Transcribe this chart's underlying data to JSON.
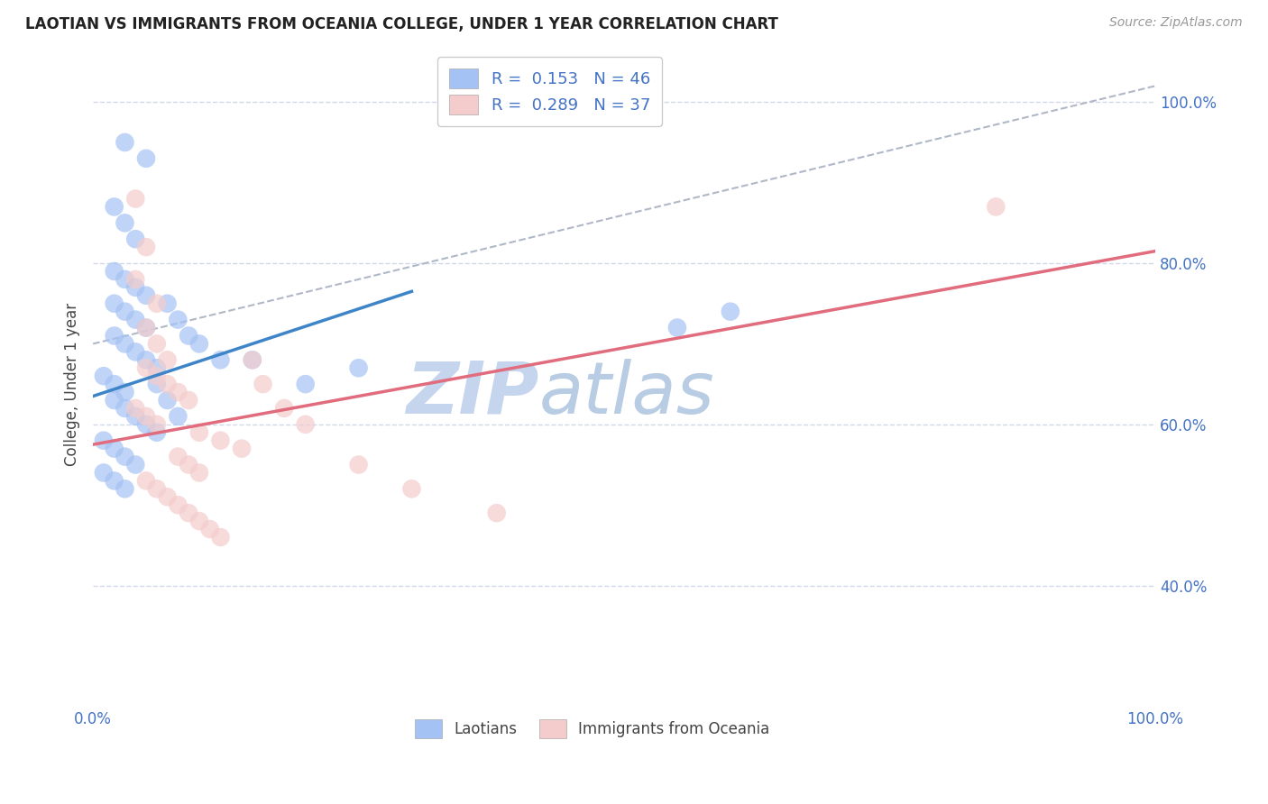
{
  "title": "LAOTIAN VS IMMIGRANTS FROM OCEANIA COLLEGE, UNDER 1 YEAR CORRELATION CHART",
  "ylabel": "College, Under 1 year",
  "source_text": "Source: ZipAtlas.com",
  "xmin": 0.0,
  "xmax": 1.0,
  "ymin": 0.25,
  "ymax": 1.05,
  "xtick_vals": [
    0.0,
    1.0
  ],
  "xtick_labels": [
    "0.0%",
    "100.0%"
  ],
  "ytick_vals": [
    0.4,
    0.6,
    0.8,
    1.0
  ],
  "ytick_labels": [
    "40.0%",
    "60.0%",
    "80.0%",
    "100.0%"
  ],
  "legend_r1": "R =  0.153",
  "legend_n1": "N = 46",
  "legend_r2": "R =  0.289",
  "legend_n2": "N = 37",
  "color_blue": "#a4c2f4",
  "color_pink": "#f4cccc",
  "color_blue_line": "#3d85c8",
  "color_pink_line": "#e06c7d",
  "color_dashed_line": "#b0b8c8",
  "watermark_color": "#c9d9f0",
  "blue_scatter_x": [
    0.03,
    0.05,
    0.02,
    0.03,
    0.04,
    0.02,
    0.03,
    0.04,
    0.05,
    0.02,
    0.03,
    0.04,
    0.05,
    0.02,
    0.03,
    0.04,
    0.05,
    0.06,
    0.01,
    0.02,
    0.03,
    0.02,
    0.03,
    0.04,
    0.05,
    0.06,
    0.01,
    0.02,
    0.03,
    0.04,
    0.01,
    0.02,
    0.03,
    0.07,
    0.08,
    0.09,
    0.1,
    0.12,
    0.06,
    0.07,
    0.08,
    0.15,
    0.2,
    0.25,
    0.55,
    0.6
  ],
  "blue_scatter_y": [
    0.95,
    0.93,
    0.87,
    0.85,
    0.83,
    0.79,
    0.78,
    0.77,
    0.76,
    0.75,
    0.74,
    0.73,
    0.72,
    0.71,
    0.7,
    0.69,
    0.68,
    0.67,
    0.66,
    0.65,
    0.64,
    0.63,
    0.62,
    0.61,
    0.6,
    0.59,
    0.58,
    0.57,
    0.56,
    0.55,
    0.54,
    0.53,
    0.52,
    0.75,
    0.73,
    0.71,
    0.7,
    0.68,
    0.65,
    0.63,
    0.61,
    0.68,
    0.65,
    0.67,
    0.72,
    0.74
  ],
  "pink_scatter_x": [
    0.04,
    0.05,
    0.04,
    0.06,
    0.05,
    0.06,
    0.07,
    0.05,
    0.06,
    0.07,
    0.08,
    0.09,
    0.04,
    0.05,
    0.06,
    0.1,
    0.12,
    0.14,
    0.08,
    0.09,
    0.1,
    0.15,
    0.16,
    0.18,
    0.2,
    0.05,
    0.06,
    0.07,
    0.08,
    0.09,
    0.1,
    0.11,
    0.12,
    0.25,
    0.3,
    0.38,
    0.85
  ],
  "pink_scatter_y": [
    0.88,
    0.82,
    0.78,
    0.75,
    0.72,
    0.7,
    0.68,
    0.67,
    0.66,
    0.65,
    0.64,
    0.63,
    0.62,
    0.61,
    0.6,
    0.59,
    0.58,
    0.57,
    0.56,
    0.55,
    0.54,
    0.68,
    0.65,
    0.62,
    0.6,
    0.53,
    0.52,
    0.51,
    0.5,
    0.49,
    0.48,
    0.47,
    0.46,
    0.55,
    0.52,
    0.49,
    0.87
  ],
  "blue_line_x": [
    0.0,
    0.3
  ],
  "blue_line_y": [
    0.635,
    0.765
  ],
  "pink_line_x": [
    0.0,
    1.0
  ],
  "pink_line_y": [
    0.575,
    0.815
  ],
  "dashed_line_x": [
    0.0,
    1.0
  ],
  "dashed_line_y": [
    0.7,
    1.02
  ],
  "grid_color": "#d0d8e8",
  "label_color": "#4472c4"
}
